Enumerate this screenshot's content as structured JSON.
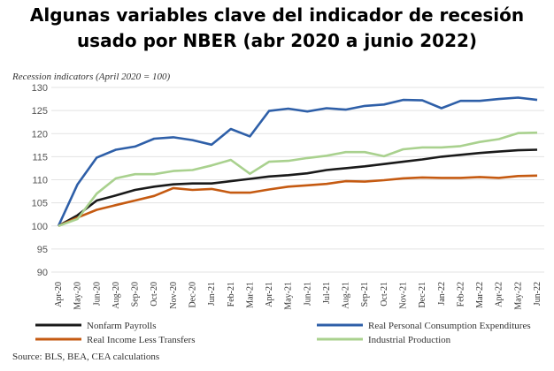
{
  "chart_data": {
    "type": "line",
    "title": "Algunas variables clave del indicador de recesión",
    "subtitle": "usado por NBER (abr 2020 a junio 2022)",
    "y_label": "Recession indicators (April 2020 = 100)",
    "source": "Source: BLS, BEA, CEA calculations",
    "categories": [
      "Apr-20",
      "May-20",
      "Jun-20",
      "Aug-20",
      "Sep-20",
      "Oct-20",
      "Nov-20",
      "Dec-20",
      "Jun-21",
      "Feb-21",
      "Mar-21",
      "Apr-21",
      "May-21",
      "Jun-21",
      "Jul-21",
      "Aug-21",
      "Sep-21",
      "Oct-21",
      "Nov-21",
      "Dec-21",
      "Jan-22",
      "Feb-22",
      "Mar-22",
      "Apr-22",
      "May-22",
      "Jun-22"
    ],
    "series": [
      {
        "name": "Nonfarm Payrolls",
        "color": "#1a1a1a",
        "values": [
          100,
          102.3,
          105.5,
          106.6,
          107.8,
          108.5,
          109,
          109.2,
          109.2,
          109.7,
          110.2,
          110.7,
          111,
          111.4,
          112.1,
          112.5,
          112.9,
          113.4,
          113.9,
          114.4,
          115,
          115.4,
          115.8,
          116.1,
          116.4,
          116.5
        ]
      },
      {
        "name": "Real Personal Consumption Expenditures",
        "color": "#2e5fa8",
        "values": [
          100,
          109,
          114.8,
          116.5,
          117.2,
          118.9,
          119.2,
          118.6,
          117.6,
          121,
          119.4,
          124.9,
          125.4,
          124.8,
          125.5,
          125.2,
          126,
          126.3,
          127.3,
          127.2,
          125.5,
          127.1,
          127.1,
          127.5,
          127.8,
          127.3
        ]
      },
      {
        "name": "Real Income Less Transfers",
        "color": "#c55a11",
        "values": [
          100,
          101.8,
          103.5,
          104.5,
          105.5,
          106.5,
          108.2,
          107.8,
          108,
          107.2,
          107.2,
          107.9,
          108.5,
          108.8,
          109.1,
          109.7,
          109.6,
          109.9,
          110.3,
          110.5,
          110.4,
          110.4,
          110.6,
          110.4,
          110.8,
          110.9
        ]
      },
      {
        "name": "Industrial Production",
        "color": "#a9d18e",
        "values": [
          100,
          101.5,
          107,
          110.3,
          111.2,
          111.2,
          111.9,
          112.1,
          113.1,
          114.3,
          111.3,
          113.9,
          114.1,
          114.7,
          115.2,
          116,
          116,
          115.1,
          116.6,
          117,
          117,
          117.3,
          118.2,
          118.8,
          120.1,
          120.2
        ]
      }
    ],
    "ylim": [
      90,
      130
    ],
    "yticks": [
      90,
      95,
      100,
      105,
      110,
      115,
      120,
      125,
      130
    ],
    "grid": true
  }
}
